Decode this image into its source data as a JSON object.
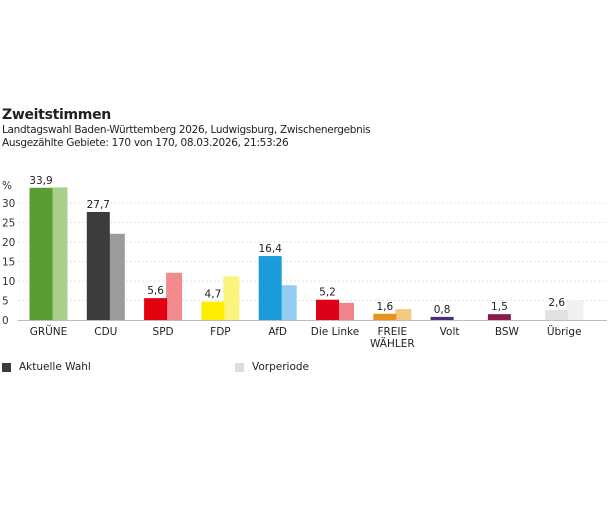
{
  "header": {
    "title": "Zweitstimmen",
    "subtitle": "Landtagswahl Baden-Württemberg 2026, Ludwigsburg, Zwischenergebnis",
    "counted": "Ausgezählte Gebiete: 170 von 170, 08.03.2026, 21:53:26"
  },
  "chart_data": {
    "type": "bar",
    "ylabel": "%",
    "ylim": [
      0,
      35
    ],
    "yticks": [
      0,
      5,
      10,
      15,
      20,
      25,
      30
    ],
    "grid": true,
    "categories": [
      "GRÜNE",
      "CDU",
      "SPD",
      "FDP",
      "AfD",
      "Die Linke",
      "FREIE WÄHLER",
      "Volt",
      "BSW",
      "Übrige"
    ],
    "category_lines": [
      [
        "GRÜNE"
      ],
      [
        "CDU"
      ],
      [
        "SPD"
      ],
      [
        "FDP"
      ],
      [
        "AfD"
      ],
      [
        "Die Linke"
      ],
      [
        "FREIE",
        "WÄHLER"
      ],
      [
        "Volt"
      ],
      [
        "BSW"
      ],
      [
        "Übrige"
      ]
    ],
    "series": [
      {
        "name": "Aktuelle Wahl",
        "values": [
          33.9,
          27.7,
          5.6,
          4.7,
          16.4,
          5.2,
          1.6,
          0.8,
          1.5,
          2.6
        ],
        "labels": [
          "33,9",
          "27,7",
          "5,6",
          "4,7",
          "16,4",
          "5,2",
          "1,6",
          "0,8",
          "1,5",
          "2,6"
        ],
        "colors": [
          "#5a9d32",
          "#3c3c3c",
          "#e3000f",
          "#ffed00",
          "#1d9cdb",
          "#dc0018",
          "#e8931d",
          "#4a2b7c",
          "#8c1a4d",
          "#e2e2e2"
        ]
      },
      {
        "name": "Vorperiode",
        "values": [
          34.0,
          22.1,
          12.1,
          11.2,
          8.9,
          4.4,
          2.8,
          0,
          0,
          5.0
        ],
        "colors": [
          "#a8cf8c",
          "#9b9b9b",
          "#f28a8f",
          "#fbf47c",
          "#91cdf0",
          "#f0848b",
          "#f5c984",
          "#ffffff",
          "#ffffff",
          "#f1f1f1"
        ]
      }
    ],
    "legend_placement": "bottom",
    "legend": [
      {
        "label": "Aktuelle Wahl",
        "color": "#3c3c3c"
      },
      {
        "label": "Vorperiode",
        "color": "#dddddd"
      }
    ]
  }
}
